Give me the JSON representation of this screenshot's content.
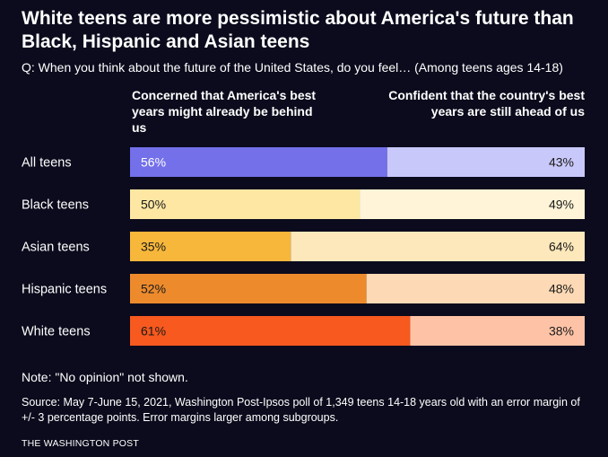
{
  "title": "White teens are more pessimistic about America's future than Black, Hispanic and Asian teens",
  "question": "Q: When you think about the future of the United States, do you feel… (Among teens ages 14-18)",
  "note": "Note: \"No opinion\" not shown.",
  "source": "Source: May 7-June 15, 2021, Washington Post-Ipsos poll of 1,349 teens 14-18 years old with an error margin of +/- 3 percentage points. Error margins larger among subgroups.",
  "brand": "THE WASHINGTON POST",
  "chart_data": {
    "type": "bar",
    "orientation": "horizontal-stacked",
    "categories": [
      "All teens",
      "Black teens",
      "Asian teens",
      "Hispanic teens",
      "White teens"
    ],
    "series": [
      {
        "name": "Concerned that America's best years might already be behind us",
        "values": [
          56,
          50,
          35,
          52,
          61
        ],
        "labels": [
          "56%",
          "50%",
          "35%",
          "52%",
          "61%"
        ],
        "colors": [
          "#7370ea",
          "#fde7a3",
          "#f7b73b",
          "#ed8b2c",
          "#f7591e"
        ]
      },
      {
        "name": "Confident that the country's best years are still ahead of us",
        "values": [
          43,
          49,
          64,
          48,
          38
        ],
        "labels": [
          "43%",
          "49%",
          "64%",
          "48%",
          "38%"
        ],
        "colors": [
          "#c9c8fa",
          "#fff4d7",
          "#fde8bb",
          "#fdd9b5",
          "#fec3a6"
        ]
      }
    ],
    "xlim": [
      0,
      100
    ],
    "grid": false,
    "legend": "column headers above bars"
  }
}
